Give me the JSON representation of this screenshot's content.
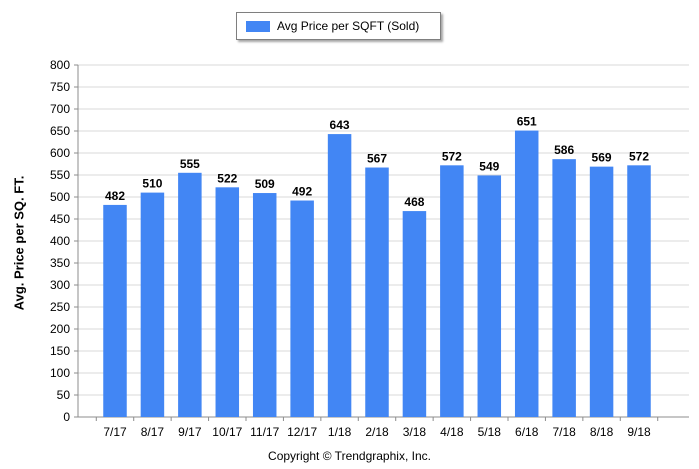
{
  "chart_data": {
    "type": "bar",
    "categories": [
      "7/17",
      "8/17",
      "9/17",
      "10/17",
      "11/17",
      "12/17",
      "1/18",
      "2/18",
      "3/18",
      "4/18",
      "5/18",
      "6/18",
      "7/18",
      "8/18",
      "9/18"
    ],
    "series": [
      {
        "name": "Avg Price per SQFT (Sold)",
        "values": [
          482,
          510,
          555,
          522,
          509,
          492,
          643,
          567,
          468,
          572,
          549,
          651,
          586,
          569,
          572
        ]
      }
    ],
    "ylabel": "Avg. Price per SQ. FT.",
    "ylim": [
      0,
      800
    ],
    "yticks": [
      0,
      50,
      100,
      150,
      200,
      250,
      300,
      350,
      400,
      450,
      500,
      550,
      600,
      650,
      700,
      750,
      800
    ],
    "grid": "horizontal",
    "legend_position": "top",
    "data_labels": true,
    "bar_color": "#4286f4"
  },
  "footer": "Copyright © Trendgraphix, Inc."
}
